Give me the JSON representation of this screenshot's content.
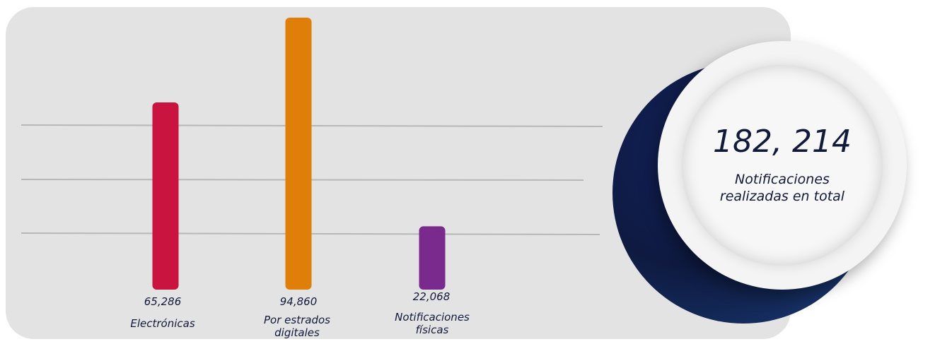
{
  "chart_data": {
    "type": "bar",
    "categories": [
      "Electrónicas",
      "Por estrados\ndigitales",
      "Notificaciones\nfísicas"
    ],
    "value_labels": [
      "65,286",
      "94,860",
      "22,068"
    ],
    "values": [
      65286,
      94860,
      22068
    ],
    "colors": [
      "#c8143f",
      "#e07e0a",
      "#7a2a8c"
    ],
    "grid": true,
    "legend": "none"
  },
  "summary": {
    "total_value": "182, 214",
    "total_label": "Notificaciones\nrealizadas en total"
  }
}
